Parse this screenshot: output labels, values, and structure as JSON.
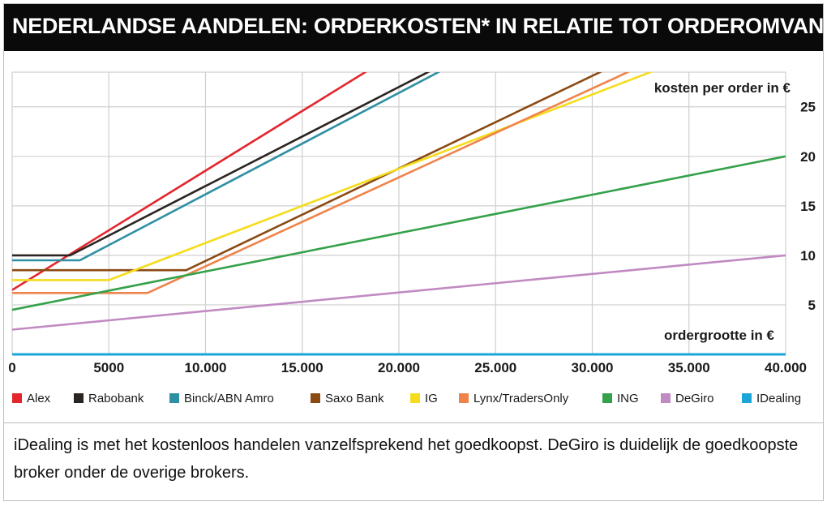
{
  "chart_data": {
    "type": "line",
    "title": "NEDERLANDSE AANDELEN: ORDERKOSTEN* IN RELATIE TOT ORDEROMVANG",
    "xlabel": "ordergrootte in €",
    "ylabel": "kosten per order in €",
    "xlim": [
      0,
      40000
    ],
    "ylim": [
      0,
      28.5
    ],
    "x_ticks": [
      {
        "value": 0,
        "label": "0"
      },
      {
        "value": 5000,
        "label": "5000"
      },
      {
        "value": 10000,
        "label": "10.000"
      },
      {
        "value": 15000,
        "label": "15.000"
      },
      {
        "value": 20000,
        "label": "20.000"
      },
      {
        "value": 25000,
        "label": "25.000"
      },
      {
        "value": 30000,
        "label": "30.000"
      },
      {
        "value": 35000,
        "label": "35.000"
      },
      {
        "value": 40000,
        "label": "40.000"
      }
    ],
    "y_ticks": [
      {
        "value": 5,
        "label": "5"
      },
      {
        "value": 10,
        "label": "10"
      },
      {
        "value": 15,
        "label": "15"
      },
      {
        "value": 20,
        "label": "20"
      },
      {
        "value": 25,
        "label": "25"
      }
    ],
    "grid": true,
    "legend_position": "bottom",
    "series": [
      {
        "name": "Alex",
        "color": "#e3262d",
        "x": [
          0,
          19500
        ],
        "y": [
          6.5,
          30
        ]
      },
      {
        "name": "Rabobank",
        "color": "#2b2522",
        "x": [
          0,
          3000,
          23000
        ],
        "y": [
          10,
          10,
          30
        ]
      },
      {
        "name": "Binck/ABN Amro",
        "color": "#2f8fa3",
        "x": [
          0,
          3500,
          23500
        ],
        "y": [
          9.5,
          9.5,
          30
        ]
      },
      {
        "name": "Saxo Bank",
        "color": "#8b4a12",
        "x": [
          0,
          9000,
          32000
        ],
        "y": [
          8.5,
          8.5,
          30
        ]
      },
      {
        "name": "IG",
        "color": "#f5dc1c",
        "x": [
          0,
          5000,
          35000
        ],
        "y": [
          7.5,
          7.5,
          30
        ]
      },
      {
        "name": "Lynx/TradersOnly",
        "color": "#f0834a",
        "x": [
          0,
          7000,
          33500
        ],
        "y": [
          6.2,
          6.2,
          30
        ]
      },
      {
        "name": "ING",
        "color": "#35a14a",
        "x": [
          0,
          40000
        ],
        "y": [
          4.5,
          20
        ]
      },
      {
        "name": "DeGiro",
        "color": "#c08ac2",
        "x": [
          0,
          40000
        ],
        "y": [
          2.5,
          10
        ]
      },
      {
        "name": "IDealing",
        "color": "#1aa6d8",
        "x": [
          0,
          40000
        ],
        "y": [
          0,
          0
        ]
      }
    ]
  },
  "caption": "iDealing is met het kostenloos handelen vanzelfsprekend het goedkoopst. DeGiro is duidelijk de goedkoopste broker onder de overige brokers."
}
